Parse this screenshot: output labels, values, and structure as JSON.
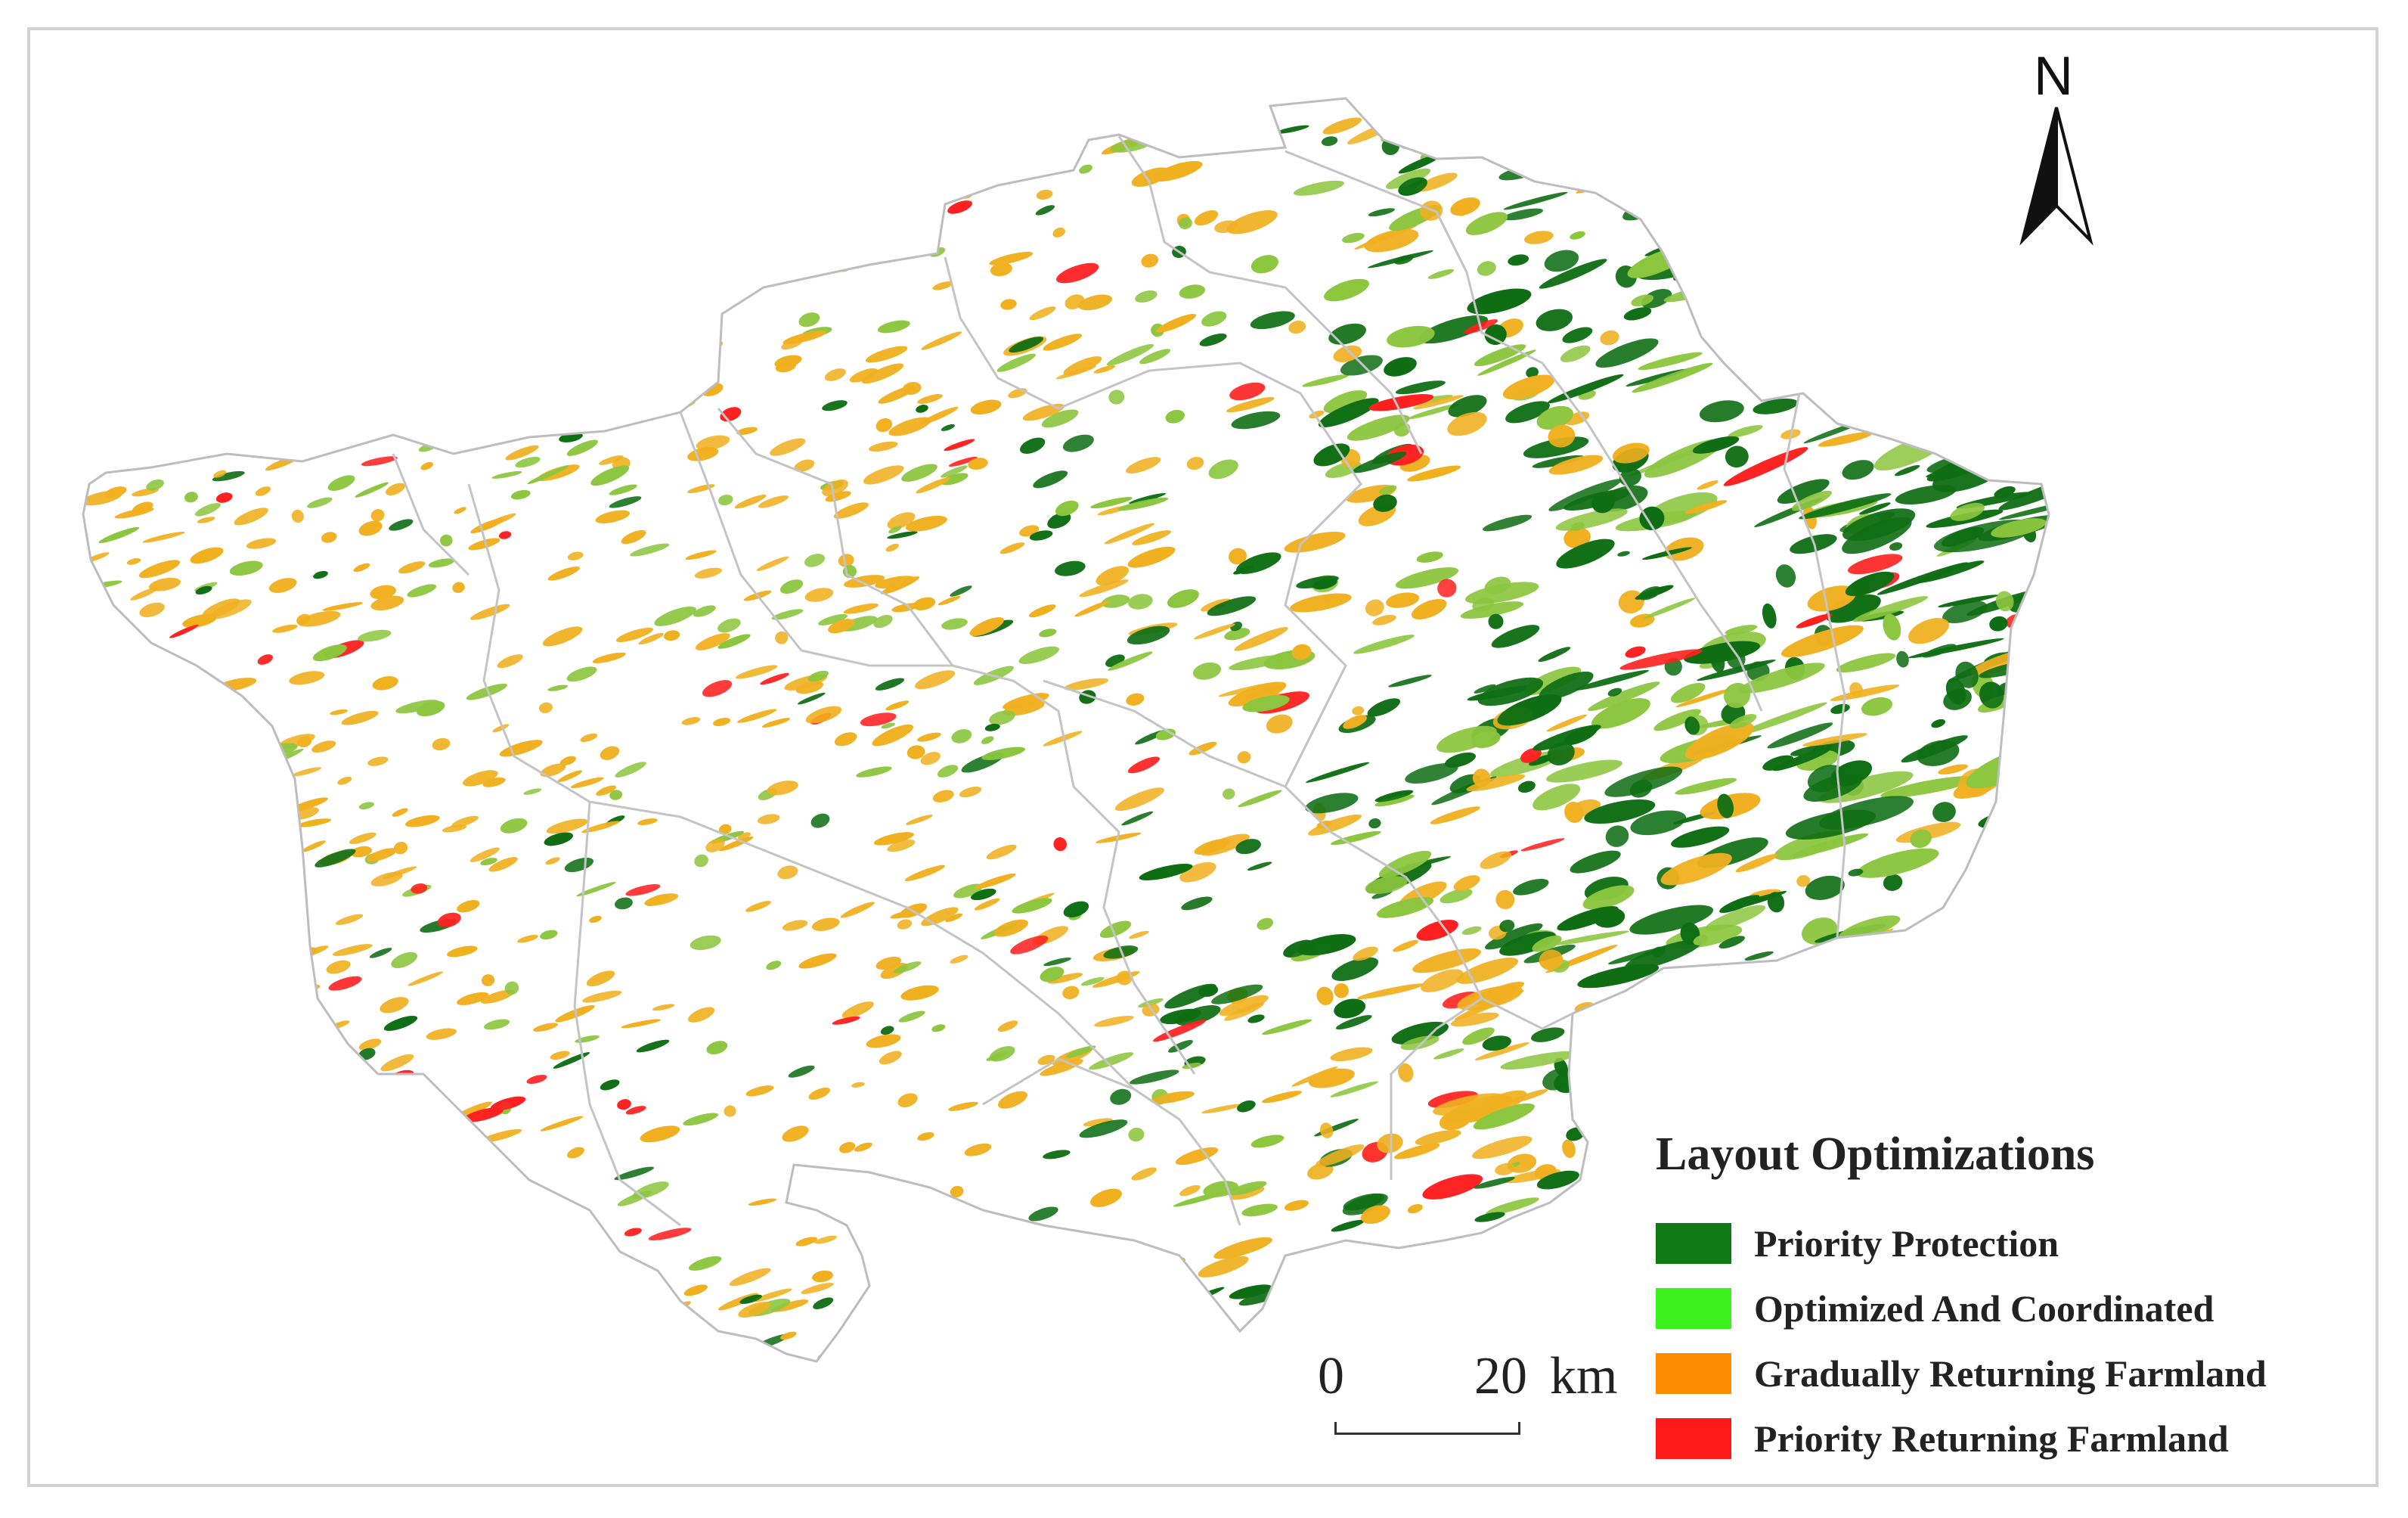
{
  "map": {
    "legend": {
      "title": "Layout Optimizations",
      "items": [
        {
          "label": "Priority Protection",
          "color": "#0f7a14"
        },
        {
          "label": "Optimized And Coordinated",
          "color": "#3cf01e"
        },
        {
          "label": "Gradually Returning Farmland",
          "color": "#ff8c00"
        },
        {
          "label": "Priority Returning Farmland",
          "color": "#ff1a1a"
        }
      ]
    },
    "scale_bar": {
      "start": "0",
      "end": "20",
      "unit": "km"
    },
    "north_arrow": {
      "label": "N",
      "icon": "north-arrow-icon"
    },
    "boundary_color": "#bdbdbd",
    "patch_colors": {
      "priority_protection": "#0f6e14",
      "optimized": "#8cc63f",
      "gradual": "#f0b020",
      "priority_return": "#ff2020"
    }
  }
}
